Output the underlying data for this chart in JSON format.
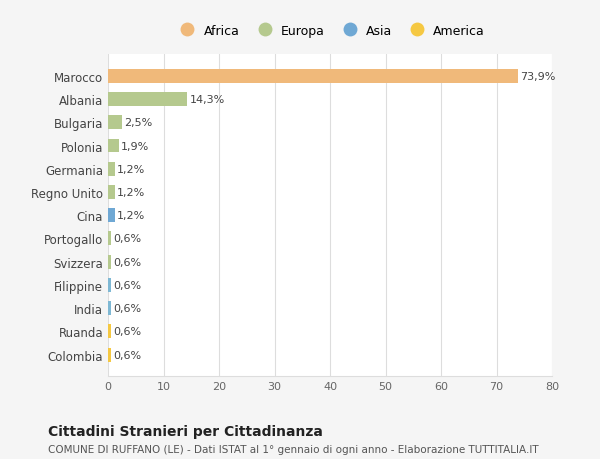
{
  "categories": [
    "Colombia",
    "Ruanda",
    "India",
    "Filippine",
    "Svizzera",
    "Portogallo",
    "Cina",
    "Regno Unito",
    "Germania",
    "Polonia",
    "Bulgaria",
    "Albania",
    "Marocco"
  ],
  "values": [
    0.6,
    0.6,
    0.6,
    0.6,
    0.6,
    0.6,
    1.2,
    1.2,
    1.2,
    1.9,
    2.5,
    14.3,
    73.9
  ],
  "labels": [
    "0,6%",
    "0,6%",
    "0,6%",
    "0,6%",
    "0,6%",
    "0,6%",
    "1,2%",
    "1,2%",
    "1,2%",
    "1,9%",
    "2,5%",
    "14,3%",
    "73,9%"
  ],
  "colors": [
    "#f5c842",
    "#f5c842",
    "#7eb8d4",
    "#7eb8d4",
    "#b5c98e",
    "#b5c98e",
    "#6fa8d4",
    "#b5c98e",
    "#b5c98e",
    "#b5c98e",
    "#b5c98e",
    "#b5c98e",
    "#f0b97a"
  ],
  "legend": [
    {
      "label": "Africa",
      "color": "#f0b97a"
    },
    {
      "label": "Europa",
      "color": "#b5c98e"
    },
    {
      "label": "Asia",
      "color": "#6fa8d4"
    },
    {
      "label": "America",
      "color": "#f5c842"
    }
  ],
  "xlim": [
    0,
    80
  ],
  "xticks": [
    0,
    10,
    20,
    30,
    40,
    50,
    60,
    70,
    80
  ],
  "title": "Cittadini Stranieri per Cittadinanza",
  "subtitle": "COMUNE DI RUFFANO (LE) - Dati ISTAT al 1° gennaio di ogni anno - Elaborazione TUTTITALIA.IT",
  "background_color": "#f5f5f5",
  "bar_background_color": "#ffffff",
  "grid_color": "#dddddd"
}
